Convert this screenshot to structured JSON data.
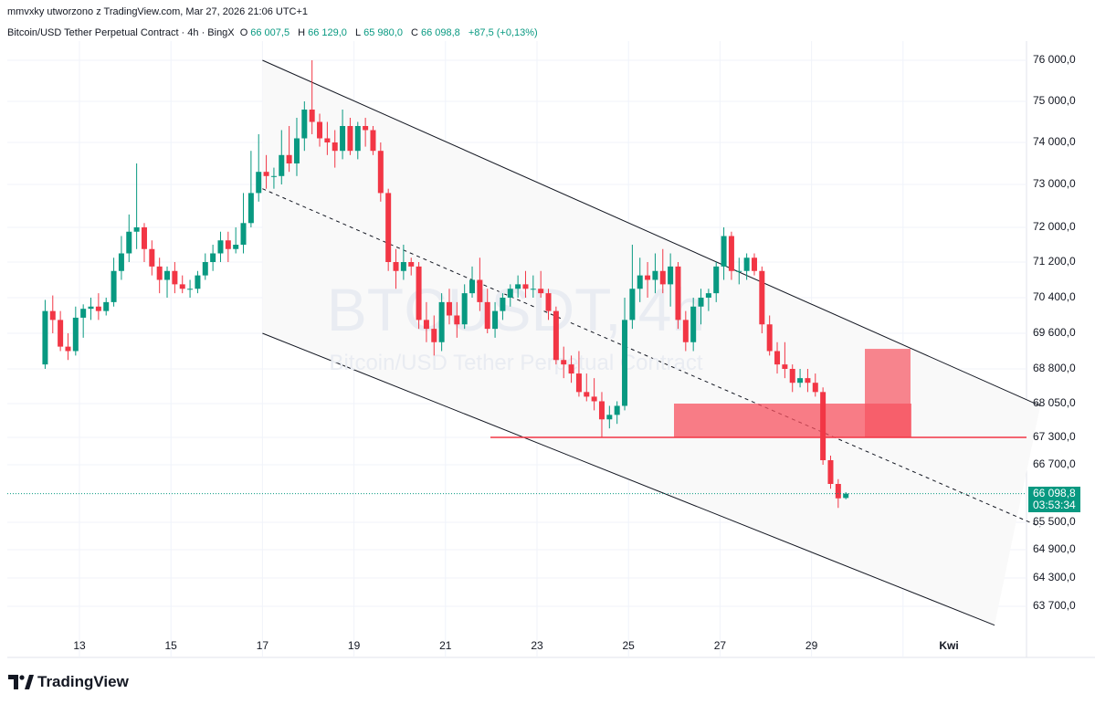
{
  "header": {
    "attribution": "mmvxky utworzono z TradingView.com, Mar 27, 2026 21:06 UTC+1"
  },
  "instrument": {
    "name": "Bitcoin/USD Tether Perpetual Contract · 4h · BingX",
    "o_label": "O",
    "o_value": "66 007,5",
    "h_label": "H",
    "h_value": "66 129,0",
    "l_label": "L",
    "l_value": "65 980,0",
    "c_label": "C",
    "c_value": "66 098,8",
    "change": "+87,5 (+0,13%)",
    "watermark_symbol": "BTCUSDT, 4h",
    "watermark_name": "Bitcoin/USD Tether Perpetual Contract"
  },
  "last_price": {
    "value": "66 098,8",
    "countdown": "03:53:34"
  },
  "footer": {
    "brand": "TradingView",
    "brand_icon": "tradingview-logo-icon"
  },
  "colors": {
    "up": "#089981",
    "down": "#f23645",
    "zone": "#f7525f",
    "grid": "#f0f3fa",
    "channel_fill": "#f9f9f9"
  },
  "chart_data": {
    "type": "candlestick",
    "price_axis_labels": [
      "76 000,0",
      "75 000,0",
      "74 000,0",
      "73 000,0",
      "72 000,0",
      "71 200,0",
      "70 400,0",
      "69 600,0",
      "68 800,0",
      "68 050,0",
      "67 300,0",
      "66 700,0",
      "65 500,0",
      "64 900,0",
      "64 300,0",
      "63 700,0"
    ],
    "time_axis_labels": [
      "13",
      "15",
      "17",
      "19",
      "21",
      "23",
      "25",
      "27",
      "29",
      "Kwi"
    ],
    "horizontal_level": 67300,
    "supply_zone": {
      "from": 67300,
      "to": 68050
    },
    "channel": {
      "upper": [
        {
          "date": "Mar 17",
          "price": 76000
        },
        {
          "date": "Apr 03",
          "price": 68000
        }
      ],
      "mid": [
        {
          "date": "Mar 17",
          "price": 72900
        },
        {
          "date": "Apr 03",
          "price": 65400
        }
      ],
      "lower": [
        {
          "date": "Mar 17",
          "price": 69600
        },
        {
          "date": "Apr 02",
          "price": 63300
        }
      ]
    },
    "candles": [
      [
        68900,
        70350,
        68800,
        70100
      ],
      [
        70100,
        70450,
        69600,
        69900
      ],
      [
        69900,
        70100,
        69200,
        69300
      ],
      [
        69300,
        69600,
        69000,
        69200
      ],
      [
        69200,
        70200,
        69100,
        69950
      ],
      [
        69950,
        70250,
        69500,
        70150
      ],
      [
        70150,
        70400,
        69900,
        70200
      ],
      [
        70200,
        70500,
        69900,
        70100
      ],
      [
        70100,
        70400,
        70000,
        70300
      ],
      [
        70300,
        71300,
        70200,
        71000
      ],
      [
        71000,
        71800,
        70800,
        71400
      ],
      [
        71400,
        72300,
        71200,
        71900
      ],
      [
        71900,
        73500,
        71500,
        72000
      ],
      [
        72000,
        72100,
        71200,
        71500
      ],
      [
        71500,
        71700,
        70900,
        71100
      ],
      [
        71100,
        71300,
        70500,
        70800
      ],
      [
        70800,
        71100,
        70400,
        71000
      ],
      [
        71000,
        71200,
        70500,
        70700
      ],
      [
        70700,
        70900,
        70500,
        70600
      ],
      [
        70600,
        70800,
        70400,
        70600
      ],
      [
        70600,
        71000,
        70500,
        70900
      ],
      [
        70900,
        71400,
        70800,
        71200
      ],
      [
        71200,
        71600,
        71000,
        71400
      ],
      [
        71400,
        71900,
        71200,
        71700
      ],
      [
        71700,
        71900,
        71200,
        71500
      ],
      [
        71500,
        72000,
        71400,
        71600
      ],
      [
        71600,
        72800,
        71400,
        72100
      ],
      [
        72100,
        73800,
        72000,
        72800
      ],
      [
        72800,
        74200,
        72600,
        73300
      ],
      [
        73300,
        73700,
        72900,
        73200
      ],
      [
        73200,
        73400,
        72900,
        73200
      ],
      [
        73200,
        74300,
        73000,
        73700
      ],
      [
        73700,
        74400,
        73300,
        73500
      ],
      [
        73500,
        74600,
        73200,
        74100
      ],
      [
        74100,
        75000,
        73800,
        74800
      ],
      [
        74800,
        76000,
        74200,
        74500
      ],
      [
        74500,
        74700,
        73900,
        74100
      ],
      [
        74100,
        74500,
        73700,
        74000
      ],
      [
        74000,
        74300,
        73400,
        73800
      ],
      [
        73800,
        74800,
        73600,
        74400
      ],
      [
        74400,
        74600,
        73700,
        73800
      ],
      [
        73800,
        74500,
        73600,
        74400
      ],
      [
        74400,
        74600,
        73900,
        74300
      ],
      [
        74300,
        74400,
        73700,
        73800
      ],
      [
        73800,
        74000,
        72600,
        72800
      ],
      [
        72800,
        72900,
        71000,
        71200
      ],
      [
        71200,
        71500,
        70600,
        71000
      ],
      [
        71000,
        71600,
        70800,
        71200
      ],
      [
        71200,
        71300,
        70900,
        71100
      ],
      [
        71100,
        71200,
        69700,
        69900
      ],
      [
        69900,
        70300,
        69400,
        69700
      ],
      [
        69700,
        70000,
        69100,
        69400
      ],
      [
        69400,
        70500,
        69200,
        70300
      ],
      [
        70300,
        70600,
        69800,
        70000
      ],
      [
        70000,
        70300,
        69500,
        69800
      ],
      [
        69800,
        70700,
        69700,
        70500
      ],
      [
        70500,
        71100,
        70400,
        70800
      ],
      [
        70800,
        71300,
        70100,
        70300
      ],
      [
        70300,
        70600,
        69600,
        69700
      ],
      [
        69700,
        70300,
        69500,
        70100
      ],
      [
        70100,
        70500,
        69900,
        70400
      ],
      [
        70400,
        70700,
        70200,
        70600
      ],
      [
        70600,
        70900,
        70400,
        70700
      ],
      [
        70700,
        71000,
        70400,
        70600
      ],
      [
        70600,
        70900,
        70400,
        70600
      ],
      [
        70600,
        71000,
        70400,
        70500
      ],
      [
        70500,
        70600,
        69900,
        70100
      ],
      [
        70100,
        70200,
        68900,
        69000
      ],
      [
        69000,
        69300,
        68600,
        68900
      ],
      [
        68900,
        69100,
        68500,
        68700
      ],
      [
        68700,
        69200,
        68200,
        68300
      ],
      [
        68300,
        68700,
        68100,
        68200
      ],
      [
        68200,
        68600,
        67900,
        68100
      ],
      [
        68100,
        68300,
        67300,
        67700
      ],
      [
        67700,
        68000,
        67500,
        67800
      ],
      [
        67800,
        68100,
        67600,
        68000
      ],
      [
        68000,
        70400,
        67900,
        69900
      ],
      [
        69900,
        71600,
        69700,
        70600
      ],
      [
        70600,
        71300,
        70300,
        70900
      ],
      [
        70900,
        71200,
        70400,
        70800
      ],
      [
        70800,
        71400,
        70500,
        71000
      ],
      [
        71000,
        71500,
        70500,
        70700
      ],
      [
        70700,
        71400,
        70200,
        71100
      ],
      [
        71100,
        71200,
        69700,
        69900
      ],
      [
        69900,
        70100,
        69200,
        69400
      ],
      [
        69400,
        70400,
        69200,
        70200
      ],
      [
        70200,
        70600,
        69800,
        70400
      ],
      [
        70400,
        70600,
        70100,
        70500
      ],
      [
        70500,
        71200,
        70300,
        71100
      ],
      [
        71100,
        72000,
        70800,
        71800
      ],
      [
        71800,
        71900,
        70800,
        71000
      ],
      [
        71000,
        71300,
        70700,
        71000
      ],
      [
        71000,
        71400,
        70800,
        71300
      ],
      [
        71300,
        71400,
        70900,
        71000
      ],
      [
        71000,
        71100,
        69600,
        69800
      ],
      [
        69800,
        70000,
        69100,
        69200
      ],
      [
        69200,
        69400,
        68700,
        68900
      ],
      [
        68900,
        69400,
        68600,
        68800
      ],
      [
        68800,
        68900,
        68300,
        68500
      ],
      [
        68500,
        68800,
        68400,
        68600
      ],
      [
        68600,
        68800,
        68300,
        68500
      ],
      [
        68500,
        68700,
        68200,
        68300
      ],
      [
        68300,
        68400,
        66700,
        66800
      ],
      [
        66800,
        66900,
        66200,
        66300
      ],
      [
        66300,
        66400,
        65800,
        66000
      ],
      [
        66007.5,
        66129,
        65980,
        66098.8
      ]
    ]
  }
}
